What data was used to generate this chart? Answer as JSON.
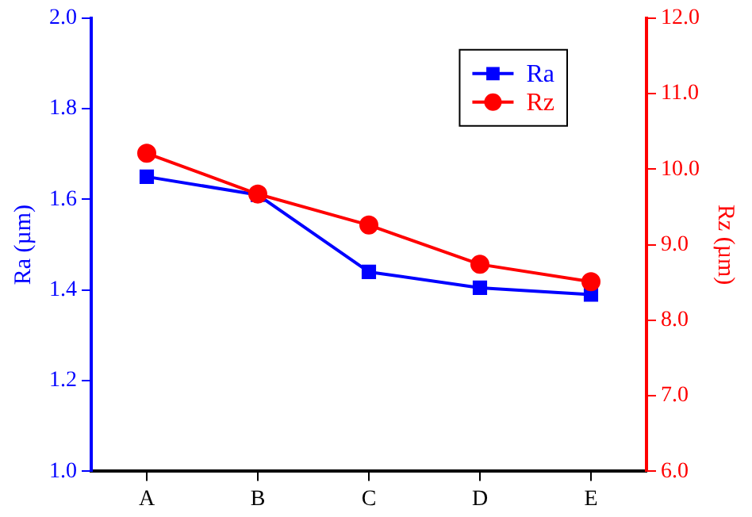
{
  "chart_data": {
    "type": "line",
    "ylabel": "Ra (µm)",
    "y2label": "Rz (µm)",
    "categories": [
      "A",
      "B",
      "C",
      "D",
      "E"
    ],
    "series": [
      {
        "name": "Ra",
        "color": "#0000ff",
        "marker": "square",
        "values": [
          1.65,
          1.61,
          1.44,
          1.405,
          1.39
        ]
      },
      {
        "name": "Rz",
        "color": "#ff0000",
        "marker": "circle",
        "axis": "y2",
        "values": [
          10.21,
          9.67,
          9.26,
          8.74,
          8.51
        ]
      }
    ],
    "ylim": [
      1.0,
      2.0
    ],
    "yticks": [
      {
        "value": 1,
        "label": "1.0"
      },
      1.2,
      1.4,
      1.6,
      1.8,
      {
        "value": 2,
        "label": "2.0"
      }
    ],
    "y2lim": [
      6.0,
      12.0
    ],
    "y2ticks": [
      {
        "value": 6,
        "label": "6.0"
      },
      {
        "value": 7,
        "label": "7.0"
      },
      {
        "value": 8,
        "label": "8.0"
      },
      {
        "value": 9,
        "label": "9.0"
      },
      {
        "value": 10,
        "label": "10.0"
      },
      {
        "value": 11,
        "label": "11.0"
      },
      {
        "value": 12,
        "label": "12.0"
      }
    ],
    "grid": false,
    "legend": "top right"
  }
}
